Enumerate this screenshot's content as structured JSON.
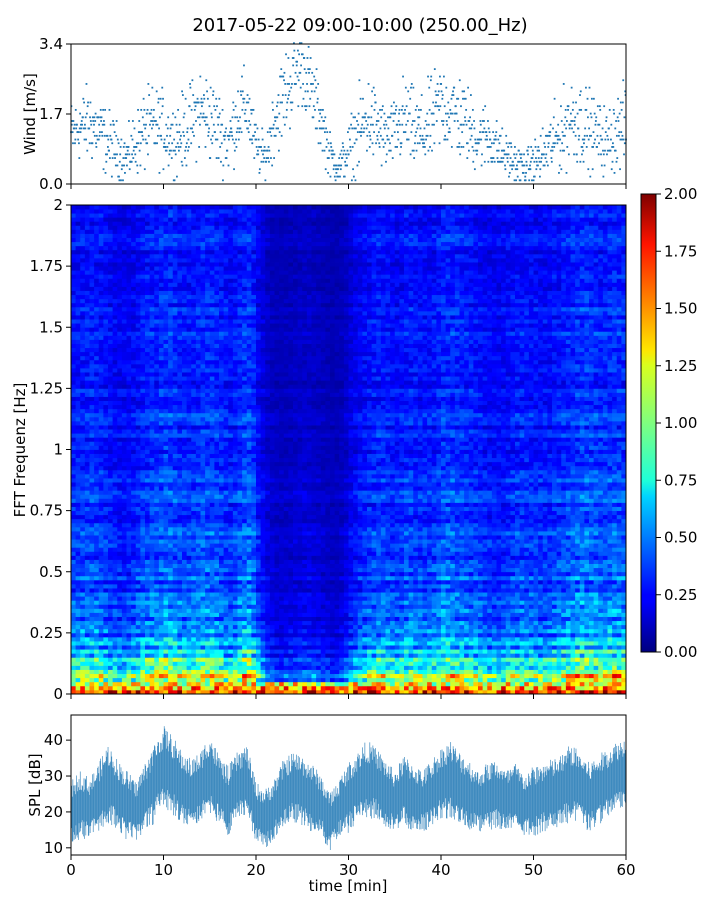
{
  "figure": {
    "title": "2017-05-22 09:00-10:00 (250.00_Hz)"
  },
  "colors": {
    "wind": "#1f77b4",
    "spl": "#1f77b4"
  },
  "chart_data": [
    {
      "type": "scatter",
      "name": "wind",
      "ylabel": "Wind [m/s]",
      "xlim": [
        0,
        60
      ],
      "ylim": [
        0.0,
        3.4
      ],
      "yticks": [
        0.0,
        1.7,
        3.4
      ],
      "ytick_labels": [
        "0.0",
        "1.7",
        "3.4"
      ],
      "x": [
        0,
        1,
        2,
        3,
        4,
        5,
        6,
        7,
        8,
        9,
        10,
        11,
        12,
        13,
        14,
        15,
        16,
        17,
        18,
        19,
        20,
        21,
        22,
        23,
        24,
        25,
        26,
        27,
        28,
        29,
        30,
        31,
        32,
        33,
        34,
        35,
        36,
        37,
        38,
        39,
        40,
        41,
        42,
        43,
        44,
        45,
        46,
        47,
        48,
        49,
        50,
        51,
        52,
        53,
        54,
        55,
        56,
        57,
        58,
        59,
        60
      ],
      "y": [
        1.2,
        1.4,
        1.5,
        1.3,
        1.0,
        0.8,
        0.6,
        1.0,
        1.3,
        1.4,
        1.3,
        1.1,
        1.2,
        1.5,
        1.8,
        1.6,
        1.3,
        1.0,
        1.7,
        1.9,
        0.9,
        0.6,
        1.6,
        2.1,
        2.6,
        2.9,
        2.2,
        1.6,
        0.7,
        0.4,
        0.8,
        1.2,
        1.6,
        1.4,
        1.1,
        1.2,
        1.6,
        1.3,
        1.2,
        1.5,
        1.9,
        1.8,
        1.6,
        1.4,
        1.1,
        1.2,
        0.9,
        0.7,
        0.5,
        0.4,
        0.5,
        0.7,
        1.0,
        1.2,
        1.6,
        1.5,
        1.3,
        1.2,
        1.0,
        1.3,
        1.4
      ],
      "spread": [
        0.6,
        0.6,
        0.7,
        0.6,
        0.6,
        0.5,
        0.4,
        0.6,
        0.7,
        0.7,
        0.7,
        0.6,
        0.7,
        0.7,
        0.8,
        0.8,
        0.7,
        0.6,
        0.7,
        0.7,
        0.5,
        0.4,
        0.7,
        0.8,
        0.8,
        0.7,
        0.7,
        0.6,
        0.4,
        0.3,
        0.5,
        0.7,
        0.8,
        0.7,
        0.6,
        0.6,
        0.8,
        0.7,
        0.7,
        0.8,
        0.8,
        0.8,
        0.8,
        0.7,
        0.6,
        0.6,
        0.5,
        0.4,
        0.4,
        0.3,
        0.4,
        0.5,
        0.6,
        0.7,
        0.8,
        0.8,
        0.7,
        0.6,
        0.6,
        0.7,
        0.7
      ]
    },
    {
      "type": "heatmap",
      "name": "spectrogram",
      "ylabel": "FFT Frequenz [Hz]",
      "xlim": [
        0,
        60
      ],
      "ylim": [
        0,
        2
      ],
      "yticks": [
        0,
        0.25,
        0.5,
        0.75,
        1,
        1.25,
        1.5,
        1.75,
        2
      ],
      "ytick_labels": [
        "0",
        "0.25",
        "0.5",
        "0.75",
        "1",
        "1.25",
        "1.5",
        "1.75",
        "2"
      ],
      "colorscale": "jet",
      "clim": [
        0.0,
        2.0
      ],
      "colorbar_ticks": [
        0.0,
        0.25,
        0.5,
        0.75,
        1.0,
        1.25,
        1.5,
        1.75,
        2.0
      ],
      "colorbar_labels": [
        "0.00",
        "0.25",
        "0.50",
        "0.75",
        "1.00",
        "1.25",
        "1.50",
        "1.75",
        "2.00"
      ],
      "time_profile": [
        0.25,
        0.26,
        0.27,
        0.25,
        0.22,
        0.2,
        0.21,
        0.25,
        0.28,
        0.29,
        0.32,
        0.28,
        0.26,
        0.27,
        0.3,
        0.29,
        0.26,
        0.24,
        0.3,
        0.32,
        0.18,
        0.12,
        0.1,
        0.11,
        0.12,
        0.13,
        0.12,
        0.1,
        0.09,
        0.11,
        0.18,
        0.22,
        0.25,
        0.27,
        0.24,
        0.23,
        0.27,
        0.25,
        0.24,
        0.26,
        0.3,
        0.29,
        0.27,
        0.26,
        0.23,
        0.22,
        0.21,
        0.24,
        0.26,
        0.25,
        0.24,
        0.23,
        0.26,
        0.28,
        0.3,
        0.32,
        0.3,
        0.27,
        0.31,
        0.29
      ],
      "freq_profile": [
        [
          0,
          1.8
        ],
        [
          0.05,
          1.1
        ],
        [
          0.1,
          0.75
        ],
        [
          0.2,
          0.5
        ],
        [
          0.4,
          0.36
        ],
        [
          0.75,
          0.3
        ],
        [
          1.25,
          0.26
        ],
        [
          2,
          0.24
        ]
      ]
    },
    {
      "type": "line",
      "name": "spl",
      "xlabel": "time [min]",
      "ylabel": "SPL [dB]",
      "xlim": [
        0,
        60
      ],
      "ylim": [
        8,
        47
      ],
      "xticks": [
        0,
        10,
        20,
        30,
        40,
        50,
        60
      ],
      "xtick_labels": [
        "0",
        "10",
        "20",
        "30",
        "40",
        "50",
        "60"
      ],
      "yticks": [
        10,
        20,
        30,
        40
      ],
      "ytick_labels": [
        "10",
        "20",
        "30",
        "40"
      ],
      "x": [
        0,
        1,
        2,
        3,
        4,
        5,
        6,
        7,
        8,
        9,
        10,
        11,
        12,
        13,
        14,
        15,
        16,
        17,
        18,
        19,
        20,
        21,
        22,
        23,
        24,
        25,
        26,
        27,
        28,
        29,
        30,
        31,
        32,
        33,
        34,
        35,
        36,
        37,
        38,
        39,
        40,
        41,
        42,
        43,
        44,
        45,
        46,
        47,
        48,
        49,
        50,
        51,
        52,
        53,
        54,
        55,
        56,
        57,
        58,
        59,
        60
      ],
      "y": [
        20,
        22,
        21,
        24,
        28,
        25,
        22,
        20,
        24,
        28,
        33,
        30,
        27,
        25,
        27,
        31,
        26,
        23,
        27,
        29,
        20,
        18,
        21,
        25,
        27,
        26,
        24,
        22,
        17,
        21,
        24,
        27,
        29,
        28,
        25,
        23,
        26,
        24,
        23,
        25,
        28,
        29,
        27,
        25,
        23,
        24,
        25,
        23,
        24,
        22,
        23,
        24,
        25,
        26,
        28,
        27,
        24,
        26,
        28,
        30,
        31
      ],
      "band": [
        6,
        7,
        6,
        7,
        8,
        7,
        7,
        6,
        7,
        8,
        8,
        8,
        7,
        7,
        7,
        8,
        7,
        7,
        7,
        7,
        6,
        6,
        6,
        7,
        7,
        7,
        7,
        6,
        6,
        6,
        7,
        7,
        8,
        7,
        7,
        6,
        7,
        7,
        6,
        7,
        7,
        8,
        7,
        7,
        6,
        7,
        7,
        6,
        7,
        6,
        7,
        7,
        7,
        7,
        8,
        7,
        7,
        7,
        7,
        7,
        7
      ]
    }
  ]
}
